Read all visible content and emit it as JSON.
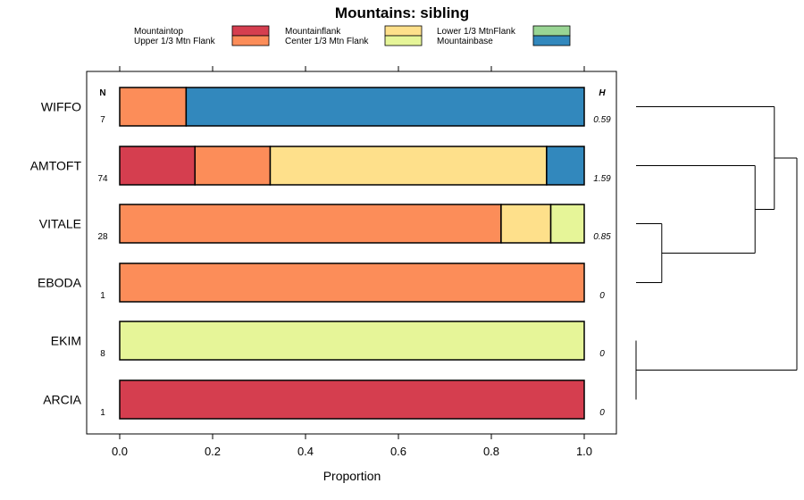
{
  "chart_data": {
    "type": "bar",
    "orientation": "horizontal-stacked",
    "title": "Mountains: sibling",
    "xlabel": "Proportion",
    "ylabel": "",
    "xlim": [
      0,
      1
    ],
    "x_ticks": [
      "0.0",
      "0.2",
      "0.4",
      "0.6",
      "0.8",
      "1.0"
    ],
    "n_header": "N",
    "h_header": "H",
    "legend": [
      {
        "name": "Mountaintop",
        "color": "#d53e4f"
      },
      {
        "name": "Upper 1/3 Mtn Flank",
        "color": "#fc8d59"
      },
      {
        "name": "Mountainflank",
        "color": "#fee08b"
      },
      {
        "name": "Center 1/3 Mtn Flank",
        "color": "#e6f598"
      },
      {
        "name": "Lower 1/3 MtnFlank",
        "color": "#99d594"
      },
      {
        "name": "Mountainbase",
        "color": "#3288bd"
      }
    ],
    "categories": [
      "WIFFO",
      "AMTOFT",
      "VITALE",
      "EBODA",
      "EKIM",
      "ARCIA"
    ],
    "n_values": [
      "7",
      "74",
      "28",
      "1",
      "8",
      "1"
    ],
    "h_values": [
      "0.59",
      "1.59",
      "0.85",
      "0",
      "0",
      "0"
    ],
    "series": [
      {
        "name": "Mountaintop",
        "values": [
          0,
          0.162,
          0,
          0,
          0,
          1
        ]
      },
      {
        "name": "Upper 1/3 Mtn Flank",
        "values": [
          0.143,
          0.162,
          0.821,
          1,
          0,
          0
        ]
      },
      {
        "name": "Mountainflank",
        "values": [
          0,
          0.595,
          0.107,
          0,
          0,
          0
        ]
      },
      {
        "name": "Center 1/3 Mtn Flank",
        "values": [
          0,
          0,
          0.072,
          0,
          1,
          0
        ]
      },
      {
        "name": "Lower 1/3 MtnFlank",
        "values": [
          0,
          0,
          0,
          0,
          0,
          0
        ]
      },
      {
        "name": "Mountainbase",
        "values": [
          0.857,
          0.081,
          0,
          0,
          0,
          0
        ]
      }
    ],
    "dendrogram": {
      "leaves": [
        "WIFFO",
        "AMTOFT",
        "VITALE",
        "EBODA",
        "EKIM",
        "ARCIA"
      ],
      "merges": [
        {
          "a": "VITALE",
          "b": "EBODA",
          "height": 0.16
        },
        {
          "a": "AMTOFT",
          "b": "VITALE+EBODA",
          "height": 0.74
        },
        {
          "a": "WIFFO",
          "b": "AMTOFT+VITALE+EBODA",
          "height": 0.86
        },
        {
          "a": "EKIM",
          "b": "ARCIA",
          "height": 0.0
        },
        {
          "a": "WIFFO+AMTOFT+VITALE+EBODA",
          "b": "EKIM+ARCIA",
          "height": 1.0
        }
      ]
    }
  }
}
